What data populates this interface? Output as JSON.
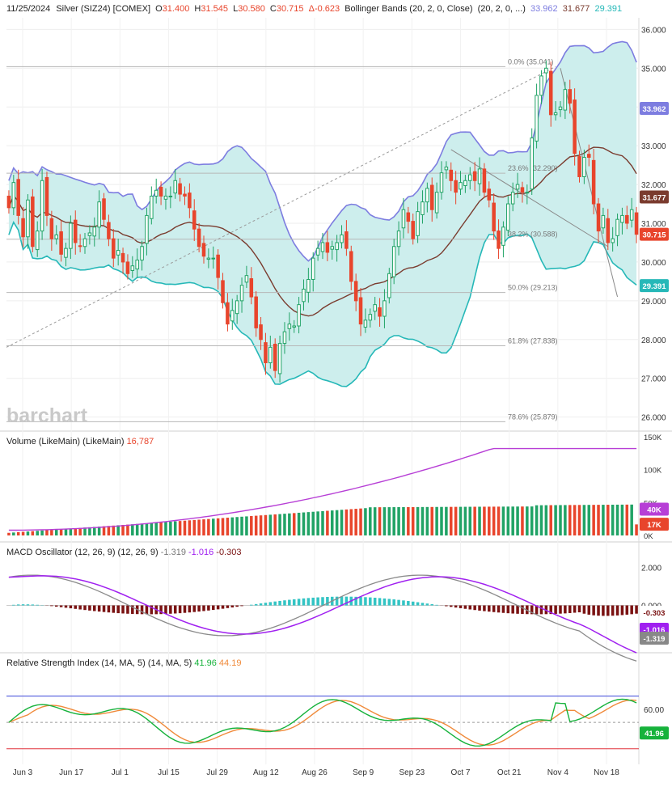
{
  "header": {
    "date": "11/25/2024",
    "instrument": "Silver (SIZ24) [COMEX]",
    "open_label": "O",
    "open": "31.400",
    "high_label": "H",
    "high": "31.545",
    "low_label": "L",
    "low": "30.580",
    "close_label": "C",
    "close": "30.715",
    "change": "Δ-0.623",
    "indicator": "Bollinger Bands (20, 2, 0, Close)",
    "indicator_params": "(20, 2, 0, ...)",
    "bb_upper": "33.962",
    "bb_mid": "31.677",
    "bb_lower": "29.391"
  },
  "watermark": "barchart",
  "colors": {
    "up": "#21a366",
    "down": "#e8452c",
    "band_fill": "#cdeeed",
    "band_upper": "#7d7de0",
    "band_lower": "#26b8b8",
    "band_mid": "#7a3b2e",
    "volume_ma": "#b73fd6",
    "macd_line": "#8a8a8a",
    "signal_line": "#a020f0",
    "hist_pos": "#33c4c4",
    "hist_neg": "#7a1212",
    "rsi": "#16b23b",
    "rsi_ma": "#f08a3a",
    "rsi_upper": "#3c44d8",
    "rsi_lower": "#e0303a"
  },
  "chart_data": [
    {
      "type": "candlestick",
      "title": "Silver (SIZ24) [COMEX]",
      "y_ticks": [
        "26.000",
        "27.000",
        "28.000",
        "29.000",
        "30.000",
        "31.000",
        "32.000",
        "33.000",
        "34.000",
        "35.000",
        "36.000"
      ],
      "ylim": [
        25.7,
        36.3
      ],
      "x_ticks": [
        "Jun 3",
        "Jun 17",
        "Jul 1",
        "Jul 15",
        "Jul 29",
        "Aug 12",
        "Aug 26",
        "Sep 9",
        "Sep 23",
        "Oct 7",
        "Oct 21",
        "Nov 4",
        "Nov 18"
      ],
      "last_values": {
        "bb_upper": "33.962",
        "bb_mid": "31.677",
        "close": "30.715",
        "bb_lower": "29.391"
      },
      "fibonacci": [
        {
          "label": "0.0% (35.041)",
          "value": 35.041
        },
        {
          "label": "23.6% (32.290)",
          "value": 32.29
        },
        {
          "label": "38.2% (30.588)",
          "value": 30.588
        },
        {
          "label": "50.0% (29.213)",
          "value": 29.213
        },
        {
          "label": "61.8% (27.838)",
          "value": 27.838
        },
        {
          "label": "78.6% (25.879)",
          "value": 25.879
        }
      ],
      "candles_close": [
        31.4,
        32.05,
        31.2,
        30.65,
        31.6,
        30.4,
        30.8,
        32.1,
        31.2,
        30.6,
        30.7,
        30.2,
        30.35,
        31.0,
        30.5,
        30.4,
        30.6,
        30.75,
        30.9,
        31.55,
        31.1,
        30.6,
        30.1,
        30.3,
        30.0,
        29.7,
        29.9,
        30.05,
        30.4,
        31.2,
        31.7,
        31.85,
        31.7,
        31.7,
        31.7,
        32.1,
        31.75,
        31.7,
        31.4,
        30.85,
        30.4,
        30.15,
        30.1,
        30.1,
        29.6,
        28.95,
        28.4,
        28.75,
        29.0,
        29.4,
        29.65,
        29.1,
        28.3,
        28.0,
        27.4,
        27.8,
        27.2,
        27.9,
        28.2,
        28.4,
        28.35,
        28.9,
        29.3,
        29.55,
        30.1,
        30.35,
        30.5,
        30.25,
        30.4,
        30.5,
        30.7,
        30.35,
        29.5,
        29.0,
        28.4,
        28.5,
        28.65,
        28.9,
        28.6,
        29.0,
        29.7,
        30.4,
        30.8,
        31.35,
        31.05,
        30.6,
        31.3,
        31.55,
        31.9,
        31.35,
        31.8,
        32.3,
        32.45,
        32.1,
        31.8,
        32.05,
        32.1,
        32.25,
        32.1,
        32.4,
        31.8,
        31.6,
        30.8,
        30.35,
        30.9,
        31.5,
        31.8,
        32.0,
        31.8,
        31.8,
        33.2,
        34.3,
        34.8,
        35.0,
        33.8,
        33.85,
        34.0,
        34.45,
        34.1,
        32.8,
        32.2,
        32.7,
        32.7,
        31.5,
        30.8,
        31.2,
        30.5,
        30.6,
        31.1,
        31.2,
        31.0,
        31.35,
        30.715
      ],
      "volume_ma_last": "16,787",
      "volume_axis_labels": [
        "150K",
        "100K",
        "50K",
        "0K"
      ],
      "volume_right_labels": [
        "40K",
        "17K"
      ]
    },
    {
      "type": "bar",
      "title": "Volume (LikeMain) (LikeMain)",
      "value_label": "16,787",
      "y_ticks": [
        "150K",
        "100K",
        "50K",
        "0K"
      ],
      "ylim": [
        0,
        150000
      ],
      "badges": [
        "40K",
        "17K"
      ]
    },
    {
      "type": "line",
      "title": "MACD Oscillator (12, 26, 9) (12, 26, 9)",
      "values_text": [
        "-1.319",
        "-1.016",
        "-0.303"
      ],
      "y_ticks": [
        "2.000",
        "0.000"
      ],
      "ylim": [
        -2.2,
        2.5
      ],
      "badges": [
        "-0.303",
        "-1.016",
        "-1.319"
      ]
    },
    {
      "type": "line",
      "title": "Relative Strength Index (14, MA, 5) (14, MA, 5)",
      "values_text": [
        "41.96",
        "44.19"
      ],
      "y_ticks": [
        "60.00"
      ],
      "ylim": [
        20,
        90
      ],
      "upper_line": 70,
      "mid_line": 50,
      "lower_line": 30,
      "badges": [
        "41.96"
      ]
    }
  ]
}
